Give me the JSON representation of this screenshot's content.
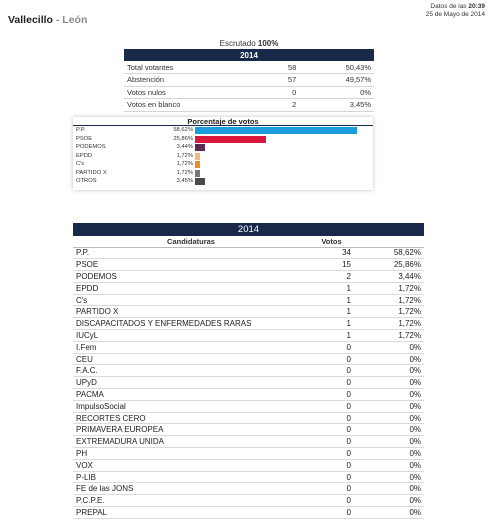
{
  "header": {
    "title": "Vallecillo",
    "separator": "-",
    "subtitle": "León",
    "updated_label": "Datos de las",
    "updated_time": "20:39",
    "updated_date": "25 de Mayo de 2014"
  },
  "escrutado": {
    "label": "Escrutado",
    "value": "100%"
  },
  "summary": {
    "year": "2014",
    "rows": [
      {
        "label": "Total votantes",
        "votes": "58",
        "pct": "50,43%"
      },
      {
        "label": "Abstención",
        "votes": "57",
        "pct": "49,57%"
      },
      {
        "label": "Votos nulos",
        "votes": "0",
        "pct": "0%"
      },
      {
        "label": "Votos en blanco",
        "votes": "2",
        "pct": "3,45%"
      }
    ]
  },
  "chart_data": {
    "type": "bar",
    "title": "Porcentaje de votos",
    "categories": [
      "P.P.",
      "PSOE",
      "PODEMOS",
      "EPDD",
      "C's",
      "PARTIDO X",
      "OTROS"
    ],
    "labels": [
      "58,62%",
      "25,86%",
      "3,44%",
      "1,72%",
      "1,72%",
      "1,72%",
      "3,45%"
    ],
    "values": [
      58.62,
      25.86,
      3.44,
      1.72,
      1.72,
      1.72,
      3.45
    ],
    "colors": [
      "#1b9ddb",
      "#d9173b",
      "#5b2b52",
      "#f1ba7e",
      "#f08a22",
      "#777777",
      "#4a4a4a"
    ],
    "xlim": [
      0,
      100
    ],
    "orientation": "horizontal"
  },
  "results": {
    "year": "2014",
    "col_candidaturas": "Candidaturas",
    "col_votos": "Votos",
    "rows": [
      {
        "name": "P.P.",
        "votes": "34",
        "pct": "58,62%"
      },
      {
        "name": "PSOE",
        "votes": "15",
        "pct": "25,86%"
      },
      {
        "name": "PODEMOS",
        "votes": "2",
        "pct": "3,44%"
      },
      {
        "name": "EPDD",
        "votes": "1",
        "pct": "1,72%"
      },
      {
        "name": "C's",
        "votes": "1",
        "pct": "1,72%"
      },
      {
        "name": "PARTIDO X",
        "votes": "1",
        "pct": "1,72%"
      },
      {
        "name": "DISCAPACITADOS Y ENFERMEDADES RARAS",
        "votes": "1",
        "pct": "1,72%"
      },
      {
        "name": "IUCyL",
        "votes": "1",
        "pct": "1,72%"
      },
      {
        "name": "I.Fem",
        "votes": "0",
        "pct": "0%"
      },
      {
        "name": "CEU",
        "votes": "0",
        "pct": "0%"
      },
      {
        "name": "F.A.C.",
        "votes": "0",
        "pct": "0%"
      },
      {
        "name": "UPyD",
        "votes": "0",
        "pct": "0%"
      },
      {
        "name": "PACMA",
        "votes": "0",
        "pct": "0%"
      },
      {
        "name": "ImpulsoSocial",
        "votes": "0",
        "pct": "0%"
      },
      {
        "name": "RECORTES CERO",
        "votes": "0",
        "pct": "0%"
      },
      {
        "name": "PRIMAVERA EUROPEA",
        "votes": "0",
        "pct": "0%"
      },
      {
        "name": "EXTREMADURA UNIDA",
        "votes": "0",
        "pct": "0%"
      },
      {
        "name": "PH",
        "votes": "0",
        "pct": "0%"
      },
      {
        "name": "VOX",
        "votes": "0",
        "pct": "0%"
      },
      {
        "name": "P-LIB",
        "votes": "0",
        "pct": "0%"
      },
      {
        "name": "FE de las JONS",
        "votes": "0",
        "pct": "0%"
      },
      {
        "name": "P.C.P.E.",
        "votes": "0",
        "pct": "0%"
      },
      {
        "name": "PREPAL",
        "votes": "0",
        "pct": "0%"
      }
    ]
  }
}
